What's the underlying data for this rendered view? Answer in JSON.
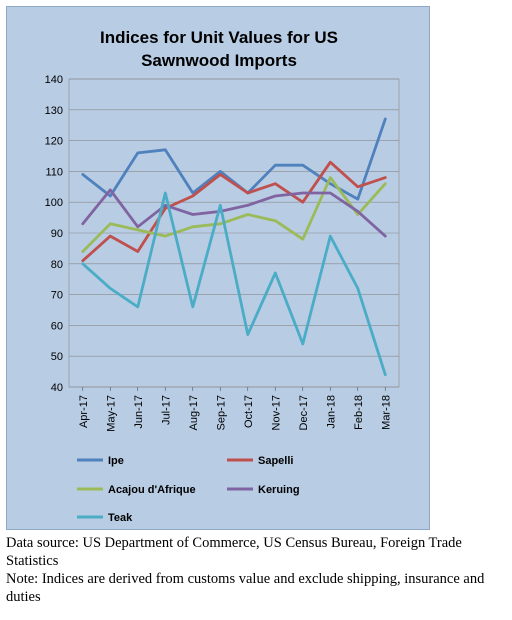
{
  "chart_data": {
    "type": "line",
    "title": [
      "Indices for Unit Values for US",
      "Sawnwood Imports"
    ],
    "categories": [
      "Apr-17",
      "May-17",
      "Jun-17",
      "Jul-17",
      "Aug-17",
      "Sep-17",
      "Oct-17",
      "Nov-17",
      "Dec-17",
      "Jan-18",
      "Feb-18",
      "Mar-18"
    ],
    "ylim": [
      40,
      140
    ],
    "yticks": [
      40,
      50,
      60,
      70,
      80,
      90,
      100,
      110,
      120,
      130,
      140
    ],
    "grid": true,
    "legend_placement": "bottom",
    "series": [
      {
        "name": "Ipe",
        "color": "#4f81bd",
        "values": [
          109,
          102,
          116,
          117,
          103,
          110,
          103,
          112,
          112,
          106,
          101,
          127
        ]
      },
      {
        "name": "Sapelli",
        "color": "#c0504d",
        "values": [
          81,
          89,
          84,
          98,
          102,
          109,
          103,
          106,
          100,
          113,
          105,
          108
        ]
      },
      {
        "name": "Acajou d'Afrique",
        "color": "#9bbb59",
        "values": [
          84,
          93,
          91,
          89,
          92,
          93,
          96,
          94,
          88,
          108,
          96,
          106
        ]
      },
      {
        "name": "Keruing",
        "color": "#8064a2",
        "values": [
          93,
          104,
          92,
          99,
          96,
          97,
          99,
          102,
          103,
          103,
          97,
          89
        ]
      },
      {
        "name": "Teak",
        "color": "#4bacc6",
        "values": [
          80,
          72,
          66,
          103,
          66,
          99,
          57,
          77,
          54,
          89,
          72,
          44
        ]
      }
    ]
  },
  "notes": {
    "source": "Data source: US Department of Commerce, US Census Bureau, Foreign Trade Statistics",
    "note": "Note: Indices are derived from customs value and exclude shipping, insurance and duties"
  }
}
